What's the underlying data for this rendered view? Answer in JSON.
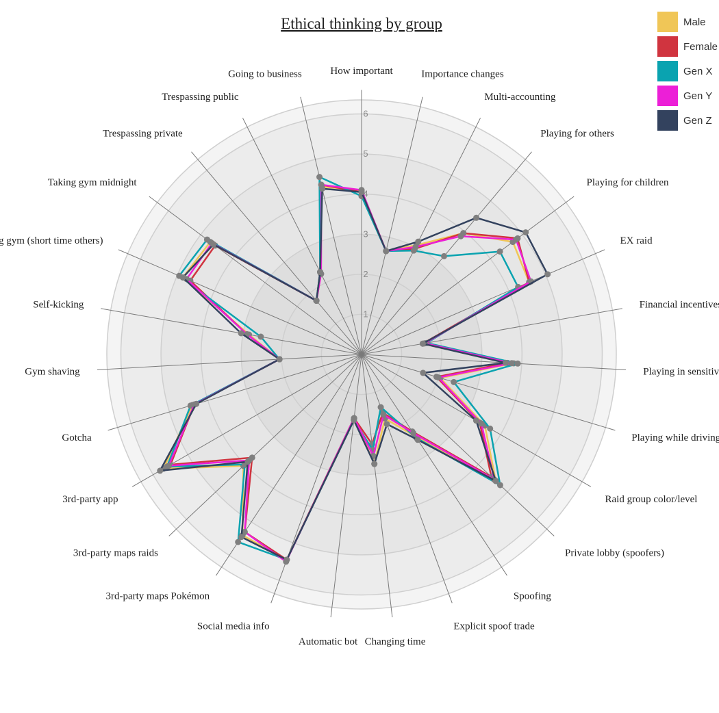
{
  "chart_data": {
    "type": "radar",
    "title": "Ethical thinking by group",
    "axes": [
      "How important",
      "Importance changes",
      "Multi-accounting",
      "Playing for others",
      "Playing for children",
      "EX raid",
      "Financial incentives",
      "Playing in sensitive locati",
      "Playing while driving",
      "Raid group color/level",
      "Private lobby (spoofers)",
      "Spoofing",
      "Explicit spoof trade",
      "Changing time",
      "Automatic bot",
      "Social media info",
      "3rd-party maps Pokémon",
      "3rd-party maps raids",
      "3rd-party app",
      "Gotcha",
      "Gym shaving",
      "Self-kicking",
      "Taking gym (short time others)",
      "Taking gym midnight",
      "Trespassing private",
      "Trespassing public",
      "Going to business"
    ],
    "radial_ticks": [
      1,
      2,
      3,
      4,
      5,
      6
    ],
    "rmax": 6.35,
    "series": [
      {
        "name": "Male",
        "color": "#f0c657",
        "values": [
          4.1,
          2.65,
          3.05,
          3.95,
          4.7,
          4.55,
          1.6,
          3.8,
          2.05,
          3.55,
          4.6,
          2.45,
          1.7,
          2.75,
          1.6,
          5.45,
          5.4,
          4.05,
          5.7,
          4.4,
          2.05,
          2.85,
          4.85,
          4.7,
          1.75,
          2.3,
          4.3
        ]
      },
      {
        "name": "Female",
        "color": "#d0343f",
        "values": [
          4.05,
          2.65,
          2.95,
          3.95,
          4.85,
          4.55,
          1.55,
          3.65,
          1.95,
          3.4,
          4.45,
          2.3,
          1.55,
          2.25,
          1.6,
          5.45,
          5.3,
          3.75,
          5.5,
          4.35,
          2.05,
          2.9,
          4.65,
          4.55,
          1.75,
          2.25,
          4.35
        ]
      },
      {
        "name": "Gen X",
        "color": "#0aa3b0",
        "values": [
          3.95,
          2.65,
          2.9,
          3.2,
          4.3,
          4.25,
          1.65,
          3.9,
          2.4,
          3.7,
          4.75,
          2.5,
          1.4,
          2.4,
          1.65,
          5.45,
          5.6,
          4.0,
          5.6,
          4.45,
          2.05,
          2.55,
          4.95,
          4.8,
          1.75,
          2.3,
          4.55
        ]
      },
      {
        "name": "Gen Y",
        "color": "#ec1fd7",
        "values": [
          4.1,
          2.65,
          3.0,
          3.85,
          4.8,
          4.6,
          1.6,
          3.75,
          2.0,
          3.45,
          4.55,
          2.35,
          1.6,
          2.55,
          1.6,
          5.5,
          5.3,
          3.85,
          5.55,
          4.35,
          2.05,
          2.9,
          4.75,
          4.65,
          1.75,
          2.25,
          4.35
        ]
      },
      {
        "name": "Gen Z",
        "color": "#33425e",
        "values": [
          4.05,
          2.65,
          3.15,
          4.45,
          5.1,
          5.05,
          1.55,
          3.6,
          1.6,
          3.3,
          4.6,
          2.55,
          1.85,
          2.75,
          1.65,
          5.45,
          5.45,
          3.9,
          5.8,
          4.3,
          2.05,
          3.05,
          4.85,
          4.6,
          1.75,
          2.3,
          4.25
        ]
      }
    ]
  }
}
